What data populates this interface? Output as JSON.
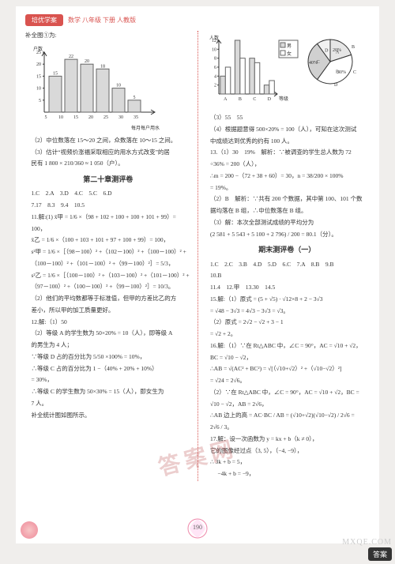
{
  "header": {
    "tag": "培优学案",
    "info": "数学 八年级 下册 人教版"
  },
  "left": {
    "intro": "补全图①为:",
    "chart1": {
      "ylabel": "户数",
      "xlabel": "每月每户用水量/m³",
      "xticks": [
        "5",
        "10",
        "15",
        "20",
        "25",
        "30",
        "35"
      ],
      "bars": [
        15,
        22,
        20,
        18,
        10,
        5
      ],
      "bar_labels": [
        "15",
        "22",
        "20",
        "18",
        "10",
        "5"
      ],
      "ymax": 25,
      "ytick_step": 5,
      "bar_color": "#d9d9d9",
      "border_color": "#666",
      "axis_color": "#333",
      "font_size": 6
    },
    "lines_a": [
      "（2）中位数落在 15～20 之间，众数落在 10～15 之间。",
      "（3）估计“视频价涨福采取相应的用水方式改变”的居",
      "民有 1 800 × 210/360 ≈ 1 050（户）。"
    ],
    "section_title": "第二十章测评卷",
    "lines_b": [
      "1.C　2.A　3.D　4.C　5.C　6.D",
      "7.17　8.3　9.4　10.5",
      "11.解:(1) x̄甲 = 1/6 ×（98 + 102 + 100 + 100 + 101 + 99）=",
      "100，",
      "x̄乙 = 1/6 ×（100 + 103 + 101 + 97 + 100 + 99）= 100，",
      "s²甲 = 1/6 ×［（98－100）² +（102－100）² +（100－100）² +",
      "（100－100）² +（101－100）² +（99－100）²］= 5/3，",
      "s²乙 = 1/6 ×［（100－100）² +（103－100）² +（101－100）² +",
      "（97－100）² +（100－100）² +（99－100）²］= 10/3。",
      "（2）他们的平均数都等于标准值，但甲的方差比乙的方",
      "差小，所以甲的加工质量更好。",
      "12.解:（1）50",
      "（2）等级 A 的学生数为 50×20% = 10（人），即等级 A",
      "的男生为 4 人；",
      "∵等级 D 占的百分比为 5/50 ×100% = 10%，",
      "∴等级 C 占的百分比为 1 −（40% + 20% + 10%）",
      "= 30%，",
      "∴等级 C 的学生数为 50×30% = 15（人），即女生为",
      "7 人。",
      "补全统计图如图所示。"
    ]
  },
  "right": {
    "chart2": {
      "ylabel": "人数",
      "xlabel": "等级",
      "xticks": [
        "A",
        "B",
        "C",
        "D"
      ],
      "series": [
        {
          "name": "男",
          "color": "#d9d9d9",
          "values": [
            4,
            12,
            8,
            2
          ]
        },
        {
          "name": "女",
          "color": "#ffffff",
          "values": [
            6,
            8,
            7,
            3
          ]
        }
      ],
      "ymax": 12,
      "ytick_step": 2,
      "axis_color": "#333",
      "font_size": 6
    },
    "pie": {
      "slices": [
        {
          "label": "A",
          "pct": 20,
          "color": "#e6e6e6"
        },
        {
          "label": "B",
          "pct": 40,
          "color": "#ffffff"
        },
        {
          "label": "C",
          "pct": 30,
          "color": "#d0d0d0"
        },
        {
          "label": "D",
          "pct": 10,
          "color": "#f2f2f2"
        }
      ],
      "shown_pcts": [
        "40%",
        "20%",
        "30%"
      ],
      "stroke": "#333"
    },
    "lines_a": [
      "（3）55　55",
      "（4）根据题意得 500×20% = 100（人），可知在这次测试",
      "中成绩达到优秀的约有 100 人。",
      "13.（1）30　19%　解析：∵被调查的学生总人数为 72",
      "÷36% = 200（人），",
      "∴m = 200 −（72 + 38 + 60）= 30，n = 38/200 × 100%",
      "= 19%。",
      "（2）B　解析：∵共有 200 个数据，其中第 100、101 个数",
      "据均落在 B 组，∴中位数落在 B 组。",
      "（3）解：本次全部测试成绩的平均分为",
      "(2 581 + 5 543 + 5 100 + 2 796) / 200 = 80.1（分）。"
    ],
    "section_title": "期末测评卷（一）",
    "lines_b": [
      "1.C　2.C　3.B　4.D　5.D　6.C　7.A　8.B　9.B",
      "10.B",
      "11.4　12.甲　13.30　14.5",
      "15.解:（1）原式 = (5 + √5) · √12×8 + 2 − 3√3",
      "= √48 − 3√3 = 4√3 − 3√3 = √3。",
      "（2）原式 = 2√2 − √2 + 3 − 1",
      "= √2 + 2。",
      "16.解:（1）∵在 Rt△ABC 中，∠C = 90°，AC = √10 + √2，",
      "BC = √10 − √2，",
      "∴AB = √(AC² + BC²) = √[（√10+√2）² +（√10−√2）²]",
      "= √24 = 2√6。",
      "（2）∵在 Rt△ABC 中，∠C = 90°，AC = √10 + √2，BC =",
      "√10 − √2，AB = 2√6，",
      "∴AB 边上的高 = AC·BC / AB = (√10+√2)(√10−√2) / 2√6 =",
      "2√6 / 3。",
      "17.解：设一次函数为 y = kx + b（k ≠ 0），",
      "它的图像经过点（3, 5），（−4, −9），",
      "∴  3k + b = 5，",
      "　 −4k + b = −9，"
    ]
  },
  "footer": {
    "page_num": "190",
    "brand_right": "答案",
    "site": "MXQE.COM",
    "watermark": "答案网"
  }
}
